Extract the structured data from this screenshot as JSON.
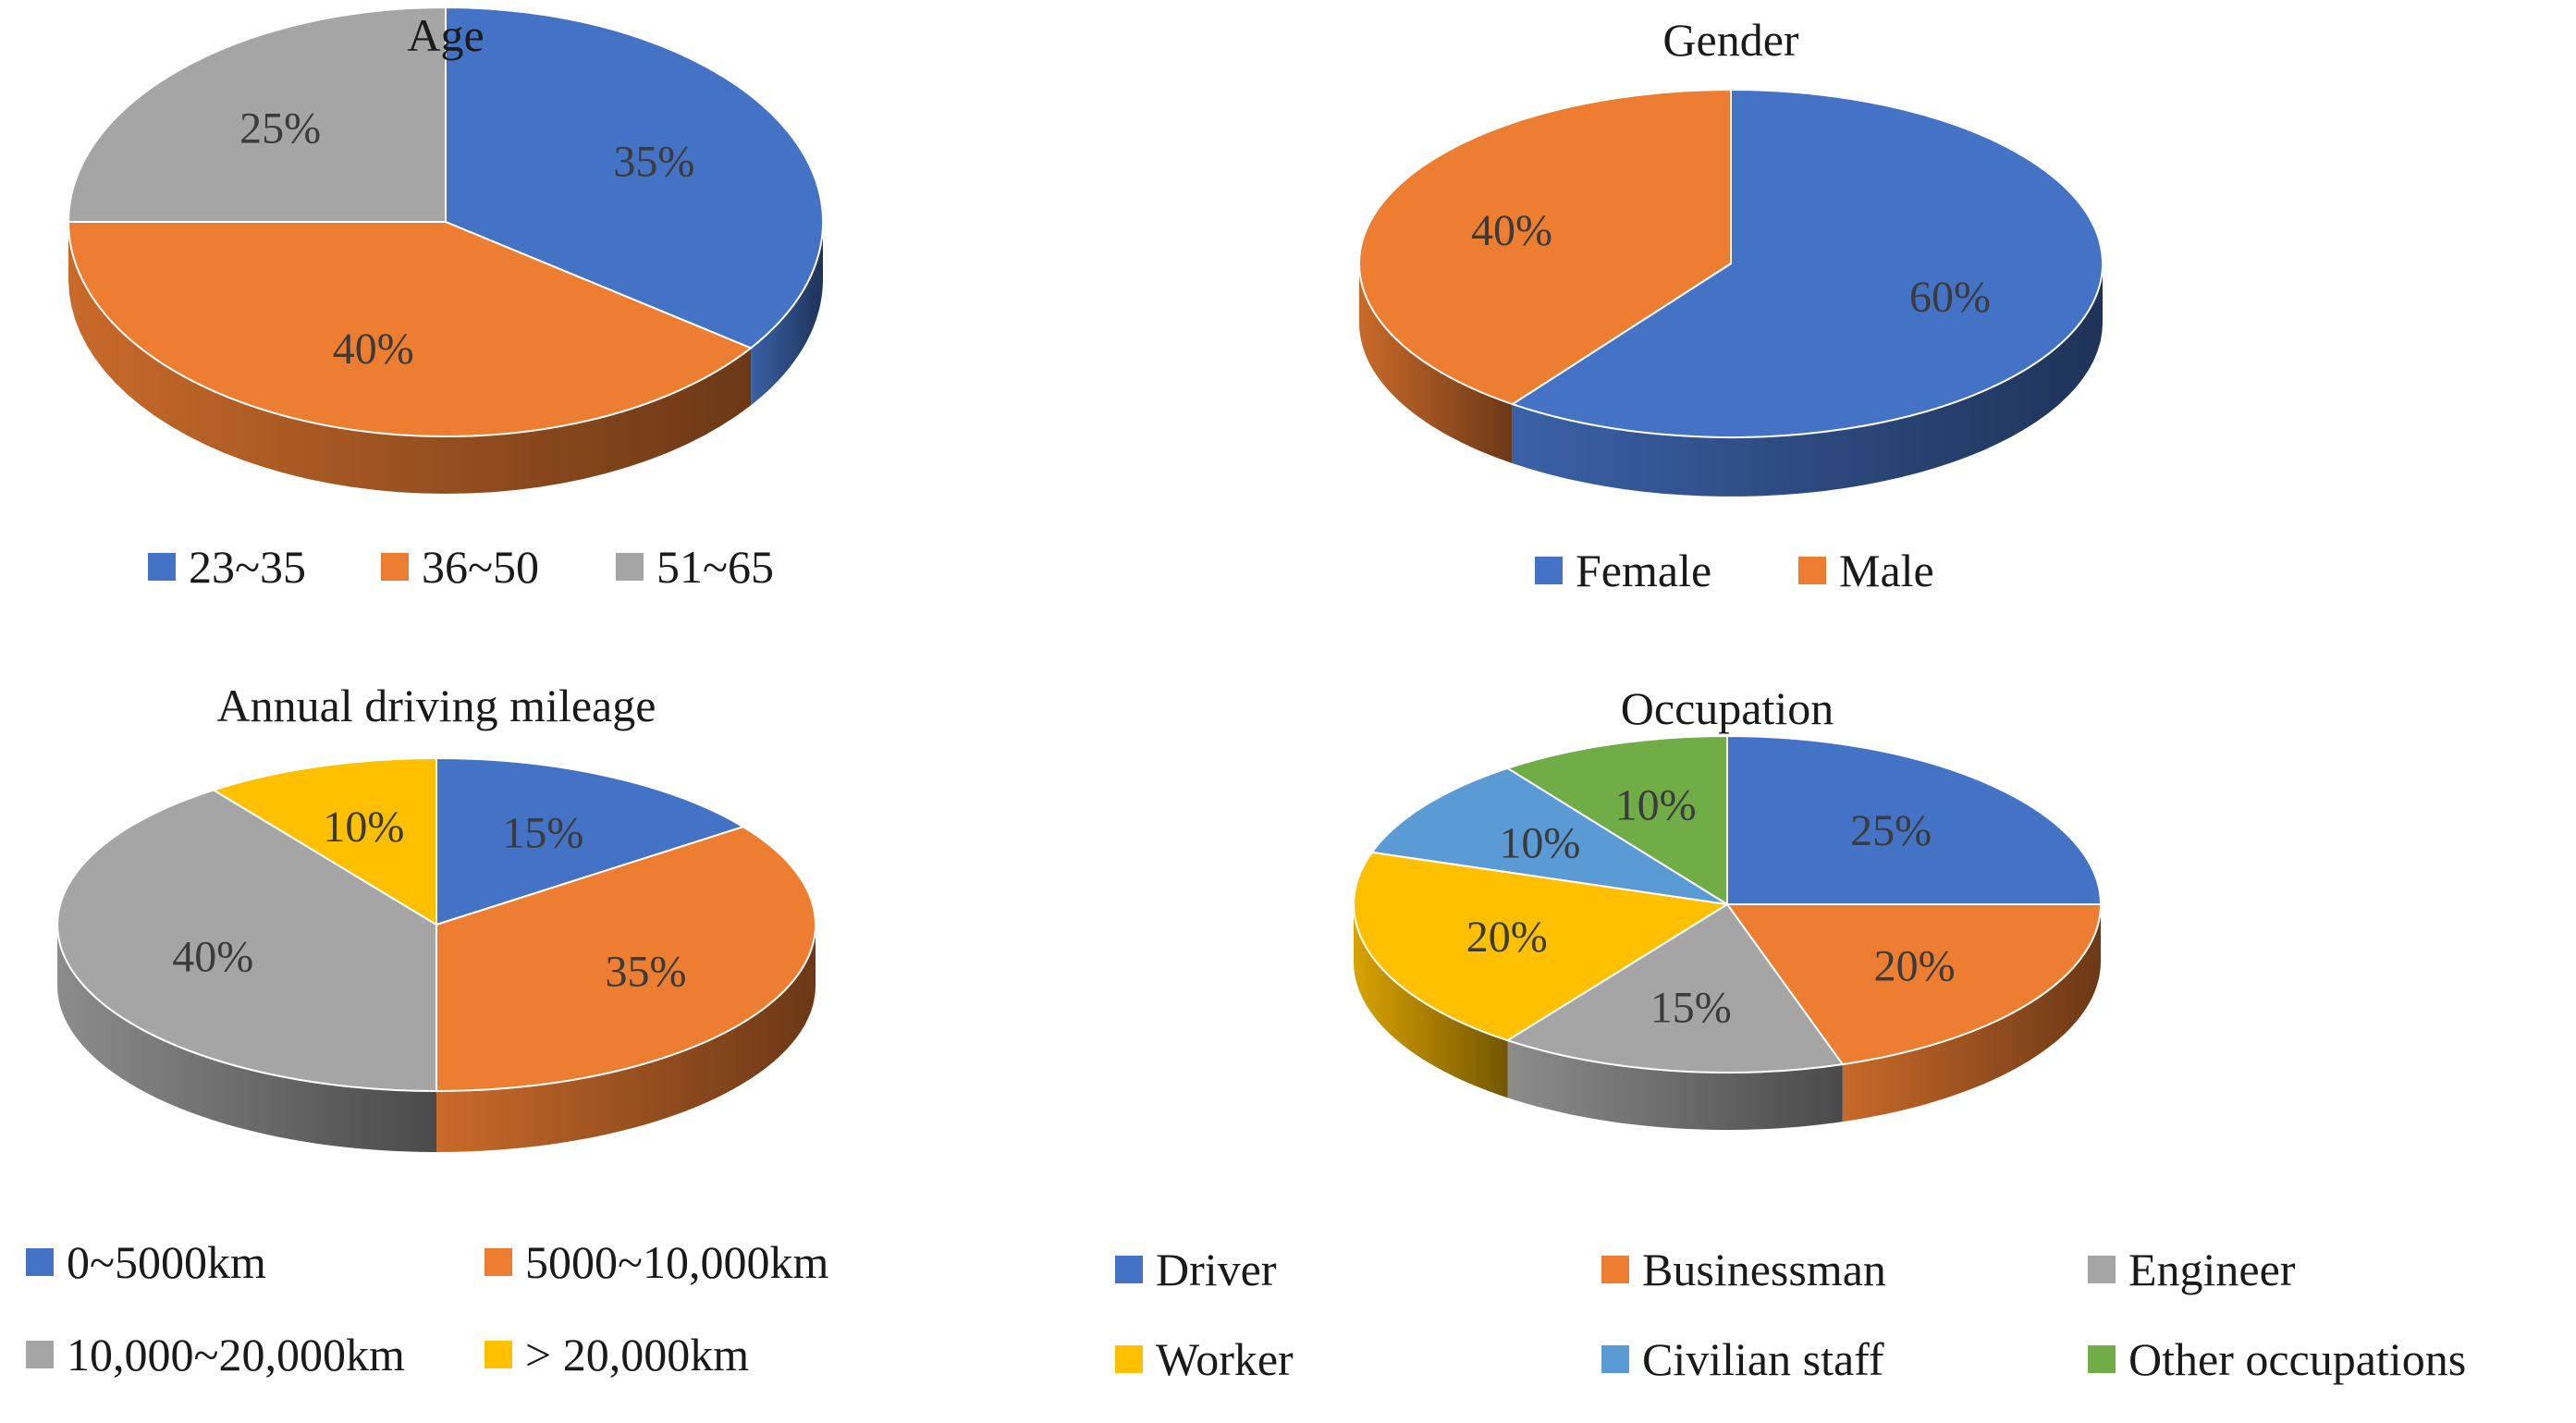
{
  "chart_data": [
    {
      "type": "pie",
      "title": "Age",
      "categories": [
        "23~35",
        "36~50",
        "51~65"
      ],
      "values": [
        35,
        40,
        25
      ],
      "labels": [
        "35%",
        "40%",
        "25%"
      ],
      "colors": [
        "#4472C4",
        "#ED7D31",
        "#A5A5A5"
      ],
      "legend_position": "bottom"
    },
    {
      "type": "pie",
      "title": "Gender",
      "categories": [
        "Female",
        "Male"
      ],
      "values": [
        60,
        40
      ],
      "labels": [
        "60%",
        "40%"
      ],
      "colors": [
        "#4472C4",
        "#ED7D31"
      ],
      "legend_position": "bottom"
    },
    {
      "type": "pie",
      "title": "Annual driving mileage",
      "categories": [
        "0~5000km",
        "5000~10,000km",
        "10,000~20,000km",
        "> 20,000km"
      ],
      "values": [
        15,
        35,
        40,
        10
      ],
      "labels": [
        "15%",
        "35%",
        "40%",
        "10%"
      ],
      "colors": [
        "#4472C4",
        "#ED7D31",
        "#A5A5A5",
        "#FFC000"
      ],
      "legend_position": "bottom"
    },
    {
      "type": "pie",
      "title": "Occupation",
      "categories": [
        "Driver",
        "Businessman",
        "Engineer",
        "Worker",
        "Civilian staff",
        "Other occupations"
      ],
      "values": [
        25,
        20,
        15,
        20,
        10,
        10
      ],
      "labels": [
        "25%",
        "20%",
        "15%",
        "20%",
        "10%",
        "10%"
      ],
      "colors": [
        "#4472C4",
        "#ED7D31",
        "#A5A5A5",
        "#FFC000",
        "#5B9BD5",
        "#70AD47"
      ],
      "legend_position": "bottom"
    }
  ]
}
